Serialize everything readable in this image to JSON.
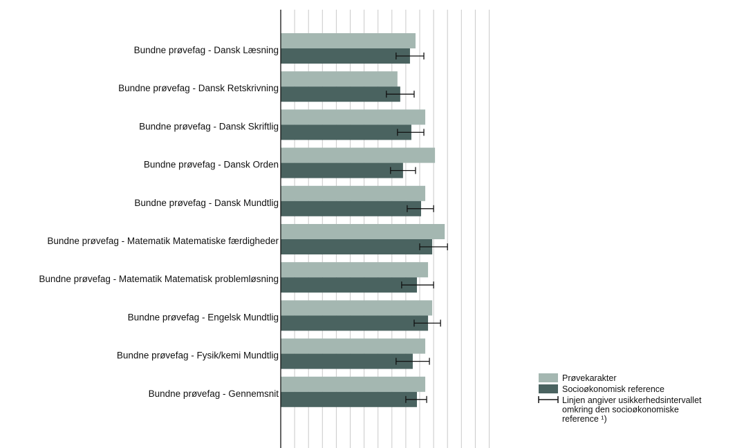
{
  "chart_data": {
    "type": "bar",
    "orientation": "horizontal",
    "grid": true,
    "legend_position": "bottom-right",
    "categories": [
      "Bundne prøvefag - Dansk Læsning",
      "Bundne prøvefag - Dansk Retskrivning",
      "Bundne prøvefag - Dansk Skriftlig",
      "Bundne prøvefag - Dansk Orden",
      "Bundne prøvefag - Dansk Mundtlig",
      "Bundne prøvefag - Matematik Matematiske færdigheder",
      "Bundne prøvefag - Matematik Matematisk problemløsning",
      "Bundne prøvefag - Engelsk Mundtlig",
      "Bundne prøvefag - Fysik/kemi Mundtlig",
      "Bundne prøvefag - Gennemsnit"
    ],
    "xlim": [
      0,
      15.5
    ],
    "series": [
      {
        "name": "Prøvekarakter",
        "color": "#a4b7b1",
        "values": [
          9.7,
          8.4,
          10.4,
          11.1,
          10.4,
          11.8,
          10.6,
          10.9,
          10.4,
          10.4
        ]
      },
      {
        "name": "Socioøkonomisk reference",
        "color": "#4a6360",
        "values": [
          9.3,
          8.6,
          9.4,
          8.8,
          10.1,
          10.9,
          9.8,
          10.6,
          9.5,
          9.8
        ],
        "error_low": [
          8.3,
          7.6,
          8.4,
          7.9,
          9.1,
          10.0,
          8.7,
          9.6,
          8.3,
          9.0
        ],
        "error_high": [
          10.3,
          9.6,
          10.3,
          9.7,
          11.0,
          12.0,
          11.0,
          11.5,
          10.7,
          10.5
        ]
      }
    ],
    "legend": {
      "items": [
        {
          "label": "Prøvekarakter",
          "color": "#a4b7b1",
          "kind": "box"
        },
        {
          "label": "Socioøkonomisk reference",
          "color": "#4a6360",
          "kind": "box"
        },
        {
          "label_lines": [
            "Linjen angiver usikkerhedsintervallet",
            "omkring den socioøkonomiske",
            "reference ¹)"
          ],
          "color": "#111111",
          "kind": "errorbar"
        }
      ]
    }
  }
}
